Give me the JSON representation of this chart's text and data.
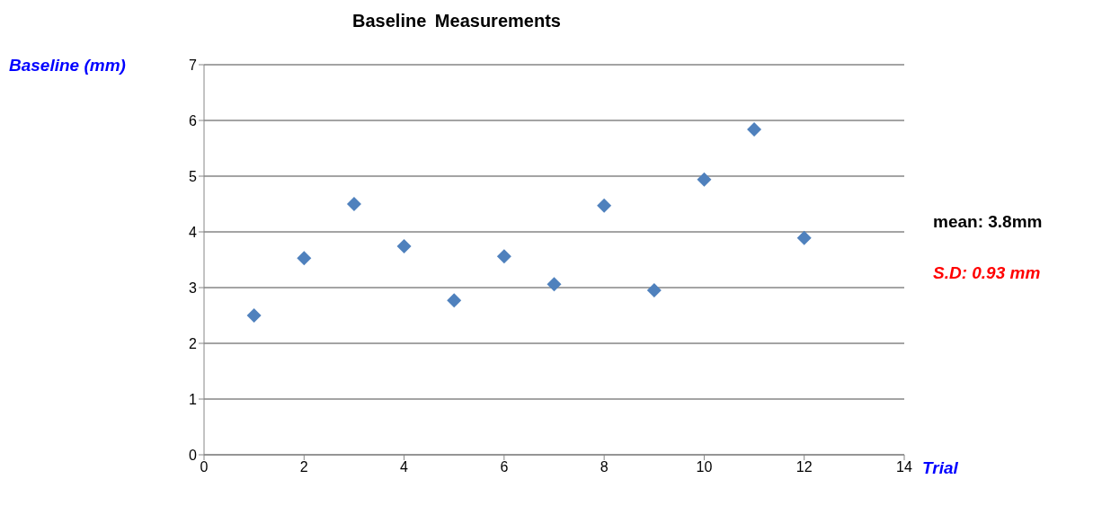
{
  "chart_data": {
    "type": "scatter",
    "title": "Baseline Measurements",
    "xlabel": "Trial",
    "ylabel": "Baseline (mm)",
    "x": [
      1,
      2,
      3,
      4,
      5,
      6,
      7,
      8,
      9,
      10,
      11,
      12
    ],
    "series": [
      {
        "color": "#4f81bd",
        "values": [
          2.5,
          3.53,
          4.5,
          3.74,
          2.77,
          3.56,
          3.06,
          4.47,
          2.95,
          4.94,
          5.84,
          3.89
        ]
      }
    ],
    "xlim": [
      0,
      14
    ],
    "xticks": [
      0,
      2,
      4,
      6,
      8,
      10,
      12,
      14
    ],
    "ylim": [
      0,
      7
    ],
    "yticks": [
      0,
      1,
      2,
      3,
      4,
      5,
      6,
      7
    ],
    "grid": "y",
    "marker": "diamond",
    "annotations": [
      "mean: 3.8mm",
      "S.D: 0.93 mm"
    ]
  }
}
